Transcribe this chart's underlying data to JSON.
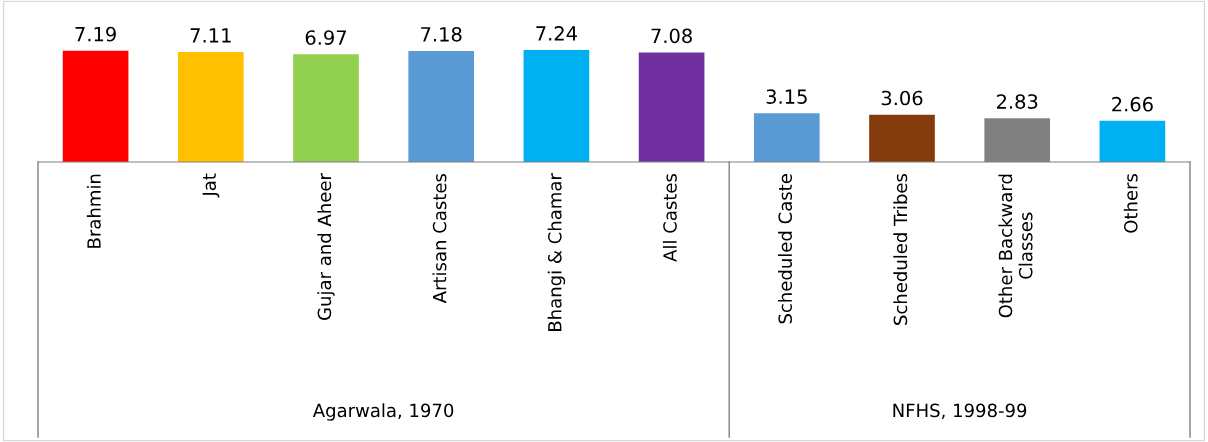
{
  "chart_data": {
    "type": "bar",
    "categories": [
      "Brahmin",
      "Jat",
      "Gujar and Aheer",
      "Artisan Castes",
      "Bhangi & Chamar",
      "All Castes",
      "Scheduled Caste",
      "Scheduled Tribes",
      "Other Backward\nClasses",
      "Others"
    ],
    "values": [
      7.19,
      7.11,
      6.97,
      7.18,
      7.24,
      7.08,
      3.15,
      3.06,
      2.83,
      2.66
    ],
    "colors": [
      "#ff0000",
      "#ffc000",
      "#92d050",
      "#5b9bd5",
      "#00b0f0",
      "#7030a0",
      "#5b9bd5",
      "#843c0c",
      "#808080",
      "#00b0f0"
    ],
    "data_labels": true,
    "grid": false,
    "legend": false,
    "annotations": [
      "Agarwala, 1970",
      "NFHS, 1998-99"
    ]
  }
}
